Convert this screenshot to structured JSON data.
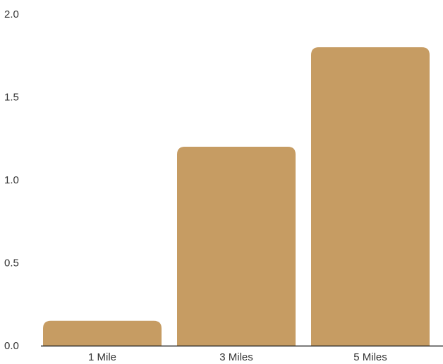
{
  "chart_data": {
    "type": "bar",
    "title": "",
    "xlabel": "",
    "ylabel": "",
    "categories": [
      "1 Mile",
      "3 Miles",
      "5 Miles"
    ],
    "values": [
      0.15,
      1.2,
      1.8
    ],
    "ylim": [
      0,
      2.0
    ],
    "yticks": [
      "0.0",
      "0.5",
      "1.0",
      "1.5",
      "2.0"
    ],
    "grid": false,
    "legend": "none",
    "colors": {
      "bar": "#c69c63",
      "axis": "#222222",
      "text": "#333333"
    }
  }
}
